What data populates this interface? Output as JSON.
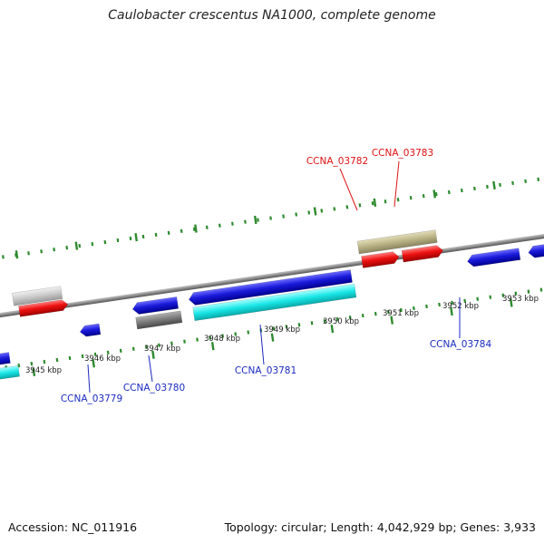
{
  "title": "Caulobacter crescentus NA1000, complete genome",
  "footer": {
    "accession": "Accession: NC_011916",
    "summary": "Topology: circular; Length: 4,042,929 bp; Genes: 3,933"
  },
  "colors": {
    "forward_cds": "#ee1111",
    "reverse_cds": "#1a1adb",
    "forward_label": "#dd1111",
    "reverse_label": "#1a2ac0",
    "backbone": "#8a8a8a",
    "tick": "#2e8b2e",
    "olive_feature": "#b9b284",
    "cyan_feature": "#19e6e6",
    "gray_feature": "#808080",
    "light_gray_feature": "#c8c8c8"
  },
  "kbp_labels": [
    "3945 kbp",
    "3946 kbp",
    "3947 kbp",
    "3948 kbp",
    "3949 kbp",
    "3950 kbp",
    "3951 kbp",
    "3952 kbp",
    "3953 kbp"
  ],
  "gene_labels": {
    "forward": [
      "CCNA_03782",
      "CCNA_03783"
    ],
    "reverse": [
      "CCNA_03779",
      "CCNA_03780",
      "CCNA_03781",
      "CCNA_03784"
    ]
  }
}
